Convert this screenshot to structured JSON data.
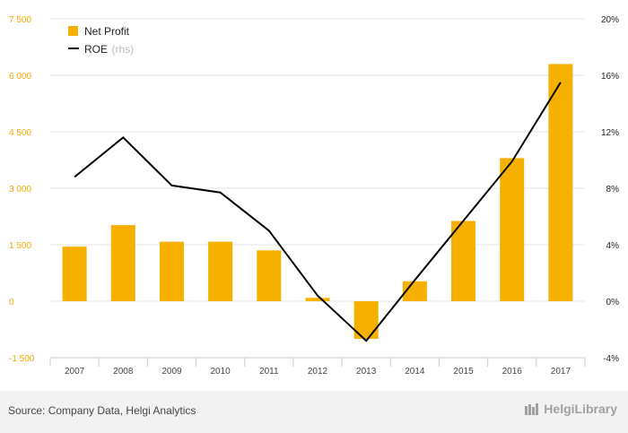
{
  "chart_data": {
    "type": "bar",
    "categories": [
      "2007",
      "2008",
      "2009",
      "2010",
      "2011",
      "2012",
      "2013",
      "2014",
      "2015",
      "2016",
      "2017"
    ],
    "series": [
      {
        "name": "Net Profit",
        "type": "bar",
        "axis": "left",
        "color": "#f5b000",
        "values": [
          1450,
          2020,
          1580,
          1580,
          1350,
          90,
          -1000,
          530,
          2130,
          3800,
          6300
        ]
      },
      {
        "name": "ROE",
        "name_suffix": "(rhs)",
        "type": "line",
        "axis": "right",
        "color": "#000000",
        "values": [
          8.8,
          11.6,
          8.2,
          7.7,
          5.0,
          0.4,
          -2.8,
          1.5,
          5.7,
          9.9,
          15.5
        ]
      }
    ],
    "y_left": {
      "ylim": [
        -1500,
        7500
      ],
      "ticks": [
        -1500,
        0,
        1500,
        3000,
        4500,
        6000,
        7500
      ],
      "tick_labels": [
        "-1 500",
        "0",
        "1 500",
        "3 000",
        "4 500",
        "6 000",
        "7 500"
      ]
    },
    "y_right": {
      "ylim": [
        -4,
        20
      ],
      "ticks": [
        -4,
        0,
        4,
        8,
        12,
        16,
        20
      ],
      "tick_labels": [
        "-4%",
        "0%",
        "4%",
        "8%",
        "12%",
        "16%",
        "20%"
      ]
    },
    "grid": true,
    "legend_position": "top-left"
  },
  "footer": {
    "source": "Source: Company Data, Helgi Analytics",
    "brand": "HelgiLibrary"
  }
}
